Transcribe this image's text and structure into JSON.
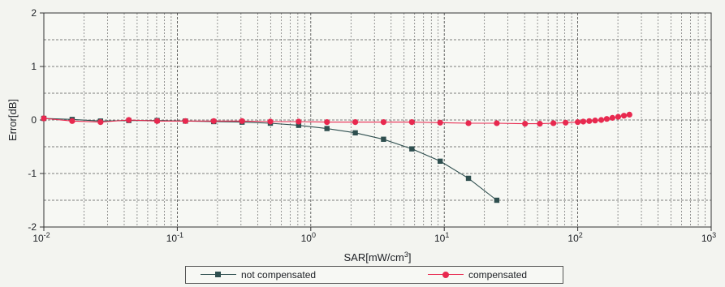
{
  "chart_data": {
    "type": "line",
    "xlabel": "SAR[mW/cm",
    "xlabel_sup": "3",
    "xlabel_end": "]",
    "ylabel": "Error[dB]",
    "xscale": "log",
    "xlim": [
      0.01,
      1000
    ],
    "ylim": [
      -2,
      2
    ],
    "x_tick_labels": [
      {
        "base": "10",
        "exp": "-2"
      },
      {
        "base": "10",
        "exp": "-1"
      },
      {
        "base": "10",
        "exp": "0"
      },
      {
        "base": "10",
        "exp": "1"
      },
      {
        "base": "10",
        "exp": "2"
      },
      {
        "base": "10",
        "exp": "3"
      }
    ],
    "y_ticks": [
      -2,
      -1,
      0,
      1,
      2
    ],
    "y_tick_labels": [
      "-2",
      "-1",
      "0",
      "1",
      "2"
    ],
    "grid": true,
    "legend_position": "bottom",
    "series": [
      {
        "name": "not compensated",
        "marker": "square",
        "color": "#2f4f4f",
        "x": [
          0.01,
          0.0163,
          0.0266,
          0.0433,
          0.0706,
          0.115,
          0.1875,
          0.3055,
          0.4978,
          0.8112,
          1.322,
          2.154,
          3.51,
          5.72,
          9.32,
          15.19,
          24.75
        ],
        "y": [
          0.03,
          0.01,
          -0.02,
          -0.01,
          -0.01,
          -0.02,
          -0.03,
          -0.04,
          -0.06,
          -0.1,
          -0.16,
          -0.24,
          -0.36,
          -0.54,
          -0.77,
          -1.09,
          -1.5
        ]
      },
      {
        "name": "compensated",
        "marker": "circle",
        "color": "#e8294f",
        "x": [
          0.01,
          0.0163,
          0.0266,
          0.0433,
          0.0706,
          0.115,
          0.1875,
          0.3055,
          0.4978,
          0.8112,
          1.322,
          2.154,
          3.51,
          5.72,
          9.32,
          15.19,
          24.75,
          40.3,
          52.0,
          65.7,
          81.1,
          100,
          110,
          122,
          135,
          150,
          165,
          182,
          201,
          222,
          244
        ],
        "y": [
          0.03,
          -0.02,
          -0.04,
          0.0,
          -0.02,
          -0.02,
          -0.02,
          -0.02,
          -0.03,
          -0.03,
          -0.04,
          -0.04,
          -0.04,
          -0.04,
          -0.05,
          -0.06,
          -0.06,
          -0.07,
          -0.07,
          -0.06,
          -0.05,
          -0.04,
          -0.03,
          -0.02,
          -0.01,
          0.0,
          0.02,
          0.04,
          0.06,
          0.08,
          0.1
        ]
      }
    ]
  },
  "legend": {
    "item1": "not compensated",
    "item2": "compensated"
  }
}
